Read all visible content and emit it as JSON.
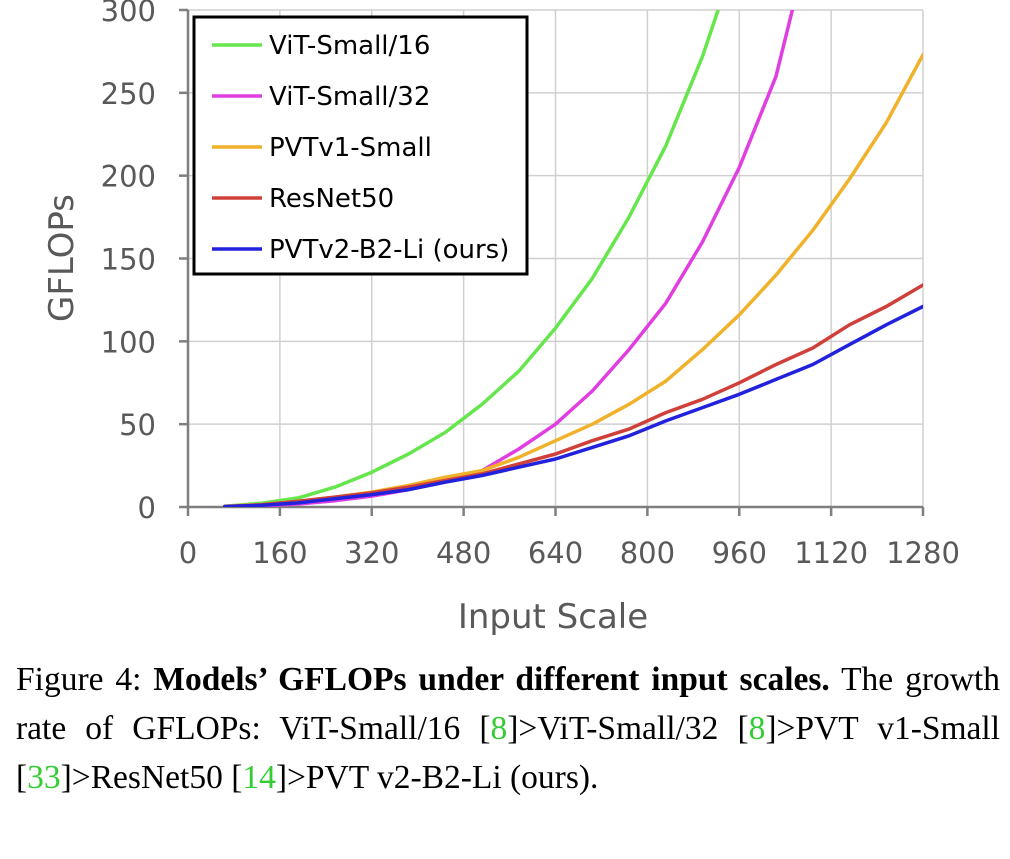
{
  "chart_data": {
    "type": "line",
    "xlabel": "Input Scale",
    "ylabel": "GFLOPs",
    "xlim": [
      0,
      1280
    ],
    "ylim": [
      0,
      300
    ],
    "xticks": [
      "0",
      "160",
      "320",
      "480",
      "640",
      "800",
      "960",
      "1120",
      "1280"
    ],
    "yticks": [
      "0",
      "50",
      "100",
      "150",
      "200",
      "250",
      "300"
    ],
    "grid": true,
    "legend_position": "top-left",
    "series": [
      {
        "name": "ViT-Small/16",
        "color": "#66e64d",
        "x": [
          64,
          128,
          192,
          256,
          320,
          384,
          448,
          512,
          576,
          640,
          704,
          768,
          832,
          896,
          928
        ],
        "y": [
          0.5,
          2.3,
          5.5,
          12,
          21,
          32,
          45,
          62,
          82,
          108,
          138,
          175,
          218,
          272,
          305
        ]
      },
      {
        "name": "ViT-Small/32",
        "color": "#e03ee0",
        "x": [
          64,
          128,
          192,
          256,
          320,
          384,
          448,
          512,
          576,
          640,
          704,
          768,
          832,
          896,
          960,
          1024,
          1056
        ],
        "y": [
          0.2,
          0.7,
          1.8,
          3.8,
          6.5,
          10.5,
          15.5,
          22,
          35,
          50,
          70,
          95,
          123,
          160,
          205,
          260,
          305
        ]
      },
      {
        "name": "PVTv1-Small",
        "color": "#f0b22a",
        "x": [
          64,
          128,
          192,
          256,
          320,
          384,
          448,
          512,
          576,
          640,
          704,
          768,
          832,
          896,
          960,
          1024,
          1088,
          1152,
          1216,
          1280
        ],
        "y": [
          0.4,
          1.5,
          3.5,
          6,
          9,
          13,
          18,
          22,
          30,
          40,
          50,
          62,
          76,
          95,
          116,
          140,
          167,
          198,
          232,
          273
        ]
      },
      {
        "name": "ResNet50",
        "color": "#d0403a",
        "x": [
          64,
          128,
          192,
          256,
          320,
          384,
          448,
          512,
          576,
          640,
          704,
          768,
          832,
          896,
          960,
          1024,
          1088,
          1152,
          1216,
          1280
        ],
        "y": [
          0.3,
          1.3,
          3.5,
          6,
          8.5,
          12,
          16,
          20,
          26,
          32,
          40,
          47,
          57,
          65,
          75,
          86,
          96,
          110,
          121,
          134
        ]
      },
      {
        "name": "PVTv2-B2-Li (ours)",
        "color": "#2222dd",
        "x": [
          64,
          128,
          192,
          256,
          320,
          384,
          448,
          512,
          576,
          640,
          704,
          768,
          832,
          896,
          960,
          1024,
          1088,
          1152,
          1216,
          1280
        ],
        "y": [
          0.3,
          1.0,
          2.5,
          5,
          7.5,
          10.5,
          15,
          19,
          24,
          29,
          36,
          43,
          52,
          60,
          68,
          77,
          86,
          98,
          110,
          121
        ]
      }
    ]
  },
  "caption": {
    "prefix": "Figure 4: ",
    "title": "Models’ GFLOPs under different input scales.",
    "part1": " The growth rate of GFLOPs: ViT-Small/16 [",
    "ref1": "8",
    "part2": "]>ViT-Small/32 [",
    "ref2": "8",
    "part3": "]>PVT v1-Small [",
    "ref3": "33",
    "part4": "]>ResNet50 [",
    "ref4": "14",
    "part5": "]>PVT v2-B2-Li (ours)."
  }
}
